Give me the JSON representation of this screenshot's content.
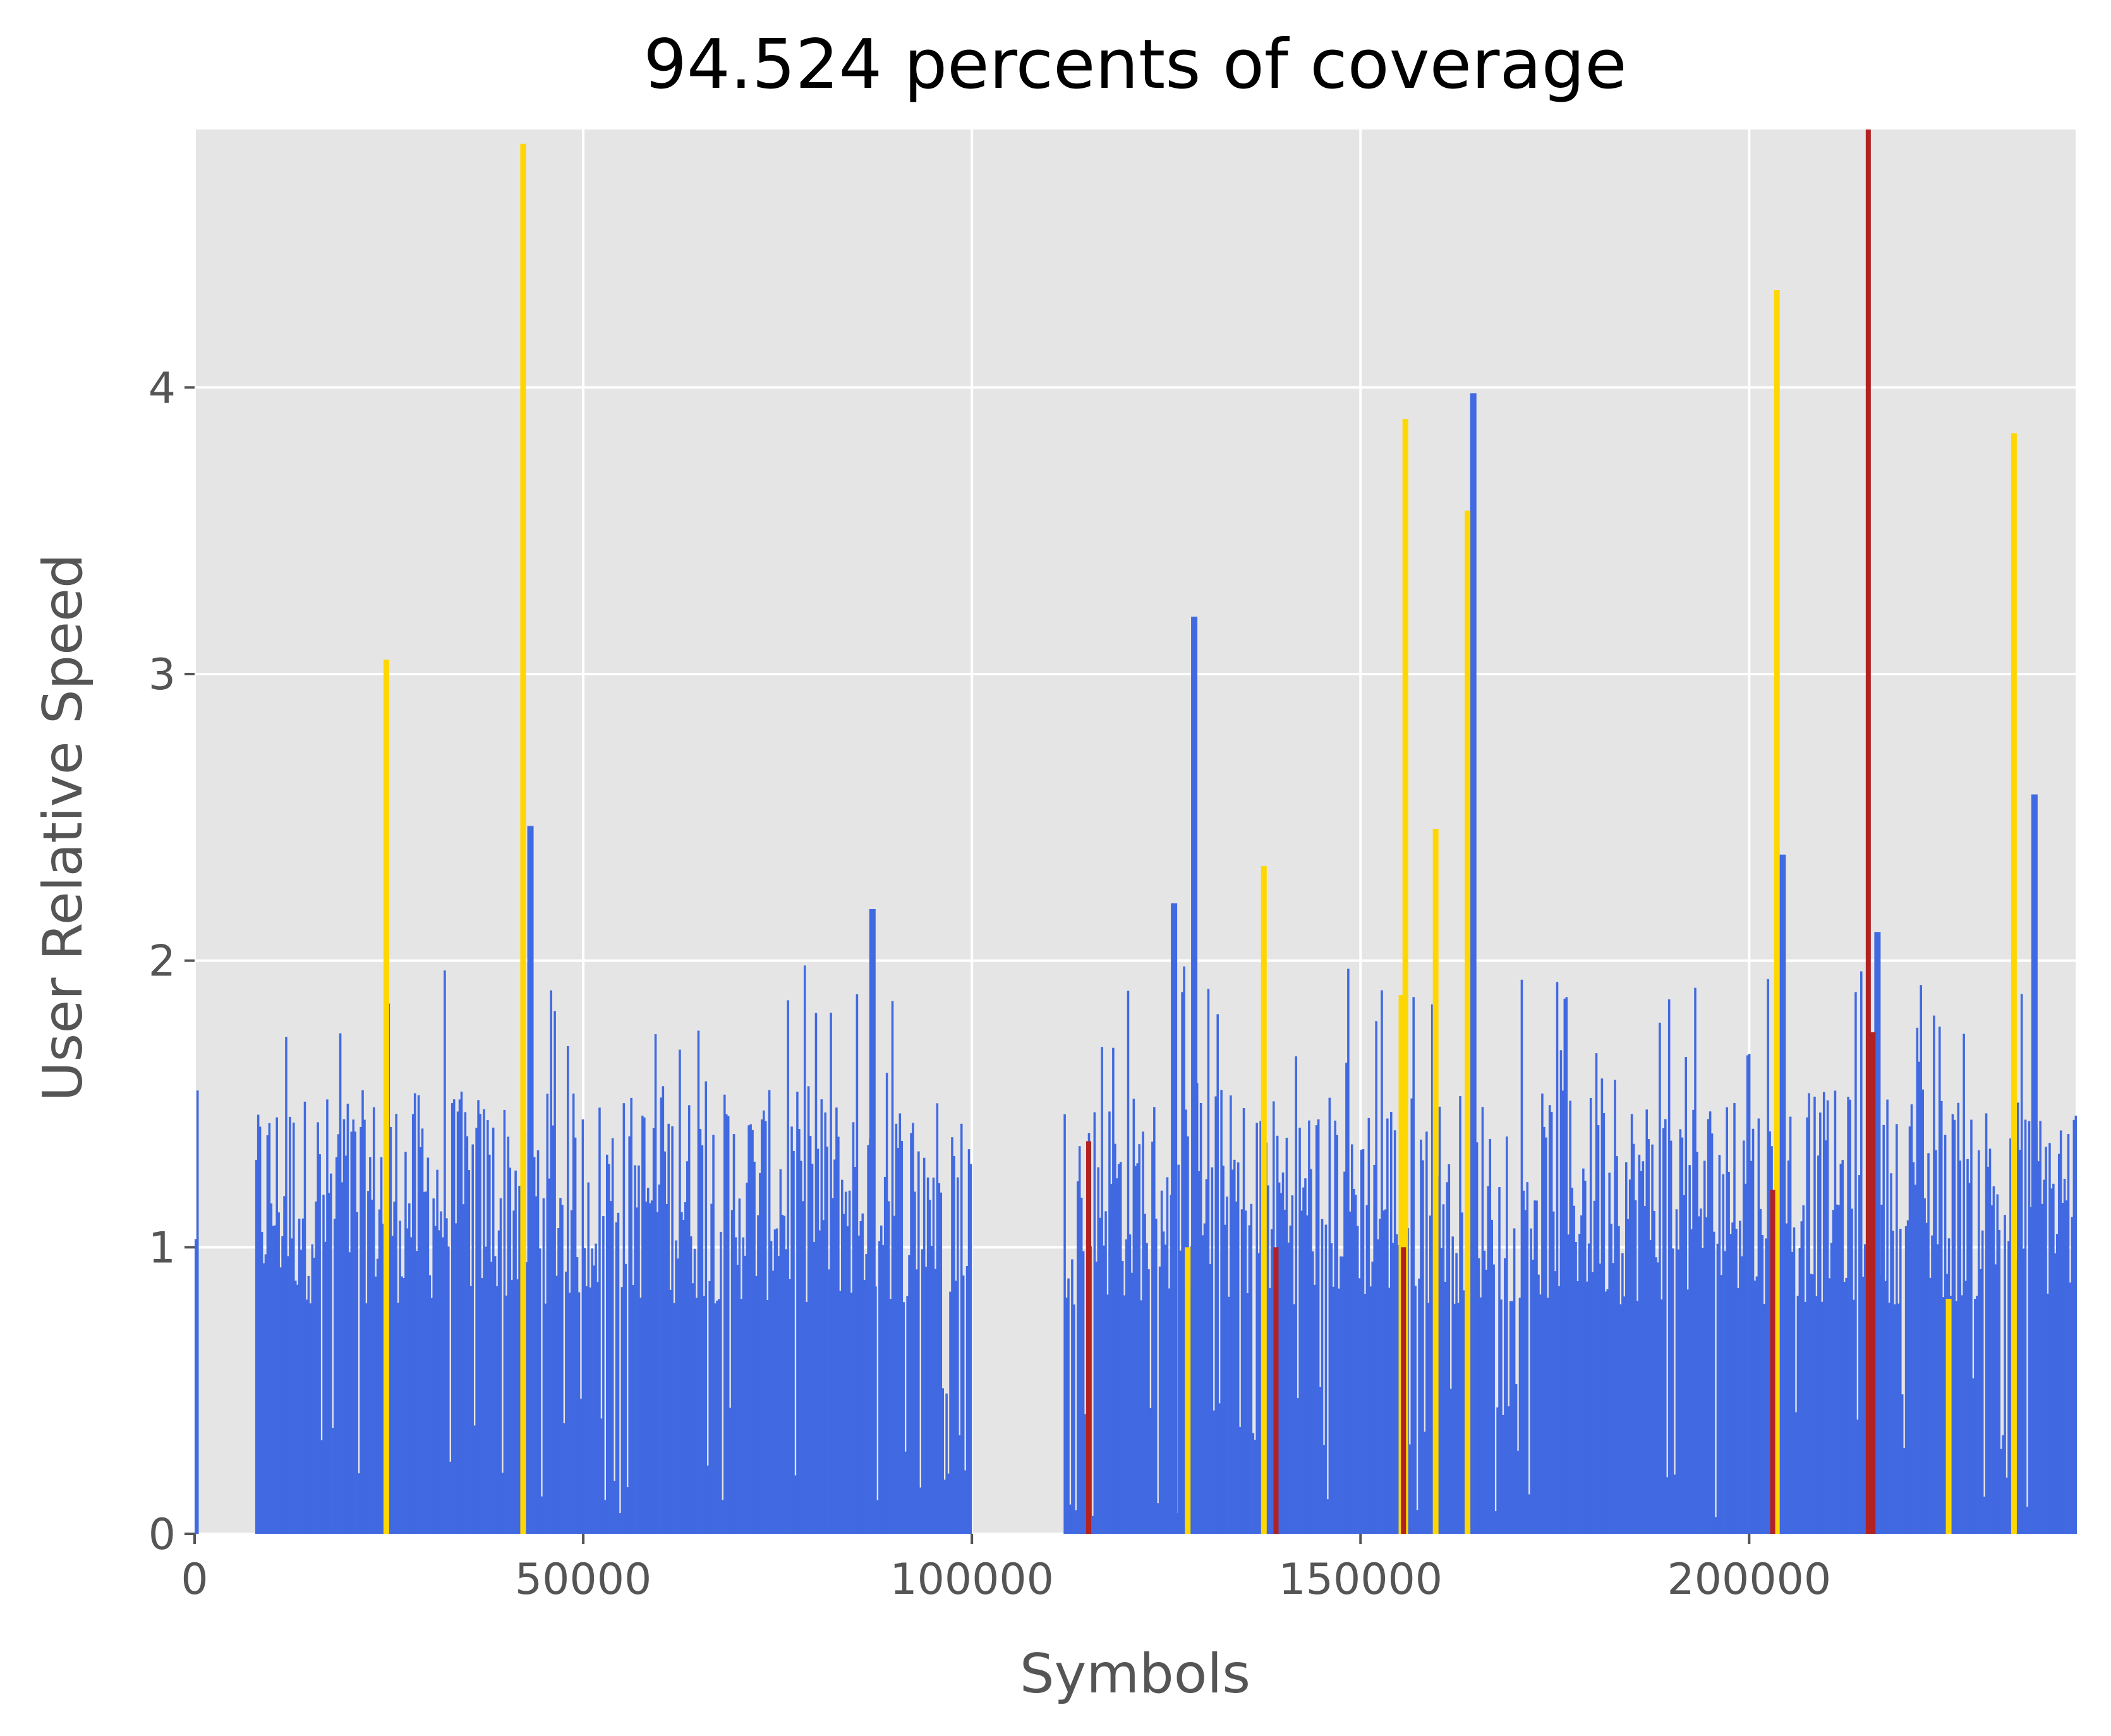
{
  "chart_data": {
    "type": "bar",
    "title": "94.524 percents of coverage",
    "xlabel": "Symbols",
    "ylabel": "User Relative Speed",
    "xlim": [
      0,
      242000
    ],
    "ylim": [
      0,
      4.9
    ],
    "xticks": [
      {
        "value": 0,
        "label": "0"
      },
      {
        "value": 50000,
        "label": "50000"
      },
      {
        "value": 100000,
        "label": "100000"
      },
      {
        "value": 150000,
        "label": "150000"
      },
      {
        "value": 200000,
        "label": "200000"
      }
    ],
    "yticks": [
      {
        "value": 0,
        "label": "0"
      },
      {
        "value": 1,
        "label": "1"
      },
      {
        "value": 2,
        "label": "2"
      },
      {
        "value": 3,
        "label": "3"
      },
      {
        "value": 4,
        "label": "4"
      }
    ],
    "grid": true,
    "legend": "none",
    "colors": {
      "normal": "#4169e1",
      "highlight": "#ffd700",
      "alert": "#b22222",
      "background": "#e5e5e5"
    },
    "segments": [
      {
        "start": 0,
        "end": 300
      },
      {
        "start": 7800,
        "end": 99800
      },
      {
        "start": 111800,
        "end": 242000
      }
    ],
    "highlight_bars": [
      {
        "x": 24300,
        "value": 3.05
      },
      {
        "x": 41900,
        "value": 4.85
      },
      {
        "x": 127400,
        "value": 1.0
      },
      {
        "x": 137200,
        "value": 2.33
      },
      {
        "x": 154900,
        "value": 1.88
      },
      {
        "x": 155400,
        "value": 3.89
      },
      {
        "x": 159300,
        "value": 2.46
      },
      {
        "x": 163400,
        "value": 3.57
      },
      {
        "x": 203200,
        "value": 4.34
      },
      {
        "x": 225300,
        "value": 0.82
      },
      {
        "x": 233700,
        "value": 3.84
      }
    ],
    "alert_bars": [
      {
        "x": 114700,
        "value": 1.37
      },
      {
        "x": 138800,
        "value": 1.0
      },
      {
        "x": 155200,
        "value": 1.0
      },
      {
        "x": 202700,
        "value": 1.2
      },
      {
        "x": 215000,
        "value": 4.9
      },
      {
        "x": 215600,
        "value": 1.75
      }
    ],
    "labeled_peaks": [
      {
        "x": 42800,
        "value": 2.47
      },
      {
        "x": 86800,
        "value": 2.18
      },
      {
        "x": 125600,
        "value": 2.2
      },
      {
        "x": 128200,
        "value": 3.2
      },
      {
        "x": 164100,
        "value": 3.98
      },
      {
        "x": 203900,
        "value": 2.37
      },
      {
        "x": 216100,
        "value": 2.1
      },
      {
        "x": 236300,
        "value": 2.58
      }
    ]
  }
}
